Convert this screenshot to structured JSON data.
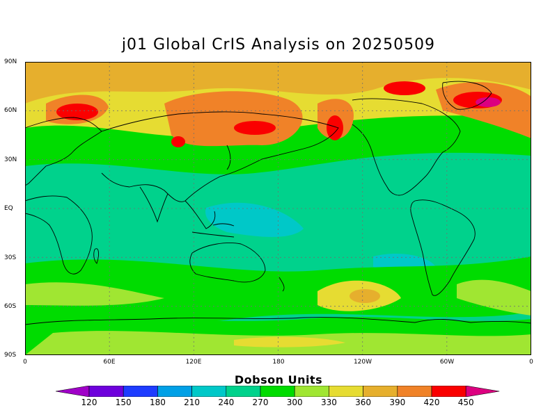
{
  "title": "j01 Global CrIS Analysis on 20250509",
  "axes": {
    "lat_labels": [
      "90N",
      "60N",
      "30N",
      "EQ",
      "30S",
      "60S",
      "90S"
    ],
    "lon_labels": [
      "0",
      "60E",
      "120E",
      "180",
      "120W",
      "60W",
      "0"
    ],
    "grid": "dotted"
  },
  "colorbar": {
    "title": "Dobson Units",
    "labels": [
      "120",
      "150",
      "180",
      "210",
      "240",
      "270",
      "300",
      "330",
      "360",
      "390",
      "420",
      "450"
    ],
    "colors": [
      "#a000c8",
      "#6e00dc",
      "#1e3cff",
      "#00a0e6",
      "#00c8c8",
      "#00d28c",
      "#00dc00",
      "#a0e632",
      "#e6dc32",
      "#e6af2d",
      "#f08228",
      "#fa0000",
      "#dc0080"
    ]
  },
  "field_colors": {
    "ocean_tropics": "#00c8c8",
    "low": "#00d28c",
    "mid": "#00dc00",
    "midhigh": "#a0e632",
    "high": "#e6dc32",
    "higher": "#e6af2d",
    "veryhigh": "#f08228",
    "max": "#fa0000",
    "peak": "#dc0080"
  }
}
